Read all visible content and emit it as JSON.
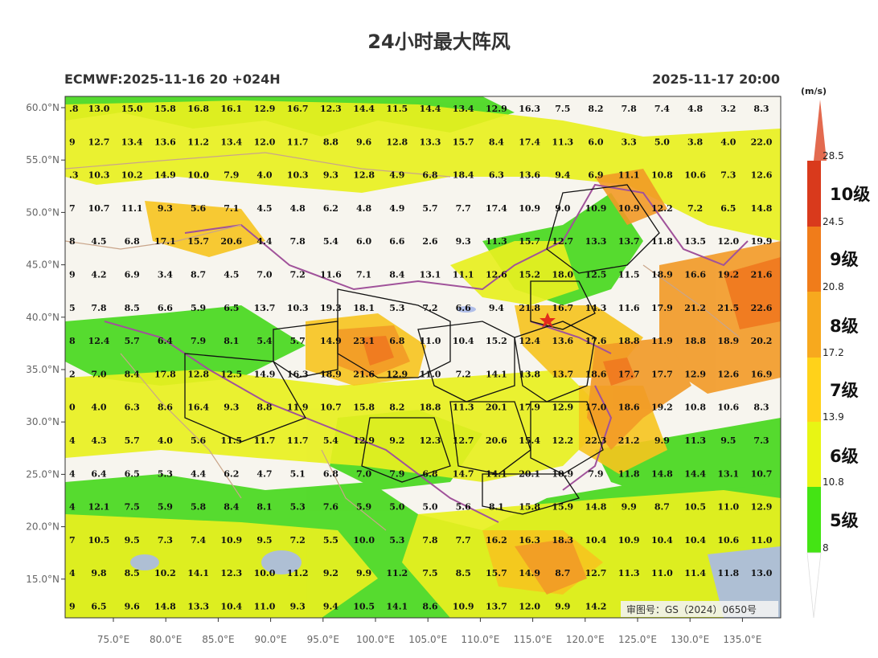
{
  "title": "24小时最大阵风",
  "subtitle_left": "ECMWF:2025-11-16 20 +024H",
  "subtitle_right": "2025-11-17 20:00",
  "approval_number": "审图号：GS（2024）0650号",
  "lat_labels": [
    "60.0°N",
    "55.0°N",
    "50.0°N",
    "45.0°N",
    "40.0°N",
    "35.0°N",
    "30.0°N",
    "25.0°N",
    "20.0°N",
    "15.0°N"
  ],
  "lon_labels": [
    "75.0°E",
    "80.0°E",
    "85.0°E",
    "90.0°E",
    "95.0°E",
    "100.0°E",
    "105.0°E",
    "110.0°E",
    "115.0°E",
    "120.0°E",
    "125.0°E",
    "130.0°E",
    "135.0°E"
  ],
  "grid_values": [
    [
      ".8",
      "13.0",
      "15.0",
      "15.8",
      "16.8",
      "16.1",
      "12.9",
      "16.7",
      "12.3",
      "14.4",
      "11.5",
      "14.4",
      "13.4",
      "12.9",
      "16.3",
      "7.5",
      "8.2",
      "7.8",
      "7.4",
      "4.8",
      "3.2",
      "8.3"
    ],
    [
      "9",
      "12.7",
      "13.4",
      "13.6",
      "11.2",
      "13.4",
      "12.0",
      "11.7",
      "8.8",
      "9.6",
      "12.8",
      "13.3",
      "15.7",
      "8.4",
      "17.4",
      "11.3",
      "6.0",
      "3.3",
      "5.0",
      "3.8",
      "4.0",
      "22.0"
    ],
    [
      ".3",
      "10.3",
      "10.2",
      "14.9",
      "10.0",
      "7.9",
      "4.0",
      "10.3",
      "9.3",
      "12.8",
      "4.9",
      "6.8",
      "18.4",
      "6.3",
      "13.6",
      "9.4",
      "6.9",
      "11.1",
      "10.8",
      "10.6",
      "7.3",
      "12.6"
    ],
    [
      "7",
      "10.7",
      "11.1",
      "9.3",
      "5.6",
      "7.1",
      "4.5",
      "4.8",
      "6.2",
      "4.8",
      "4.9",
      "5.7",
      "7.7",
      "17.4",
      "10.9",
      "9.0",
      "10.9",
      "10.9",
      "12.2",
      "7.2",
      "6.5",
      "14.8"
    ],
    [
      "8",
      "4.5",
      "6.8",
      "17.1",
      "15.7",
      "20.6",
      "4.4",
      "7.8",
      "5.4",
      "6.0",
      "6.6",
      "2.6",
      "9.3",
      "11.3",
      "15.7",
      "12.7",
      "13.3",
      "13.7",
      "11.8",
      "13.5",
      "12.0",
      "19.9"
    ],
    [
      "9",
      "4.2",
      "6.9",
      "3.4",
      "8.7",
      "4.5",
      "7.0",
      "7.2",
      "11.6",
      "7.1",
      "8.4",
      "13.1",
      "11.1",
      "12.6",
      "15.2",
      "18.0",
      "12.5",
      "11.5",
      "18.9",
      "16.6",
      "19.2",
      "21.6"
    ],
    [
      "5",
      "7.8",
      "8.5",
      "6.6",
      "5.9",
      "6.5",
      "13.7",
      "10.3",
      "19.3",
      "18.1",
      "5.3",
      "7.2",
      "6.6",
      "9.4",
      "21.8",
      "16.7",
      "14.3",
      "11.6",
      "17.9",
      "21.2",
      "21.5",
      "22.6"
    ],
    [
      "8",
      "12.4",
      "5.7",
      "6.4",
      "7.9",
      "8.1",
      "5.4",
      "5.7",
      "14.9",
      "23.1",
      "6.8",
      "11.0",
      "10.4",
      "15.2",
      "12.4",
      "13.6",
      "17.6",
      "18.8",
      "11.9",
      "18.8",
      "18.9",
      "20.2"
    ],
    [
      "2",
      "7.0",
      "8.4",
      "17.8",
      "12.8",
      "12.5",
      "14.9",
      "16.3",
      "18.9",
      "21.6",
      "12.9",
      "11.0",
      "7.2",
      "14.1",
      "13.8",
      "13.7",
      "18.6",
      "17.7",
      "17.7",
      "12.9",
      "12.6",
      "16.9"
    ],
    [
      "0",
      "4.0",
      "6.3",
      "8.6",
      "16.4",
      "9.3",
      "8.8",
      "11.9",
      "10.7",
      "15.8",
      "8.2",
      "18.8",
      "11.3",
      "20.1",
      "17.9",
      "12.9",
      "17.0",
      "18.6",
      "19.2",
      "10.8",
      "10.6",
      "8.3"
    ],
    [
      "4",
      "4.3",
      "5.7",
      "4.0",
      "5.6",
      "11.5",
      "11.7",
      "11.7",
      "5.4",
      "12.9",
      "9.2",
      "12.3",
      "12.7",
      "20.6",
      "15.4",
      "12.2",
      "22.3",
      "21.2",
      "9.9",
      "11.3",
      "9.5",
      "7.3"
    ],
    [
      "4",
      "6.4",
      "6.5",
      "5.3",
      "4.4",
      "6.2",
      "4.7",
      "5.1",
      "6.8",
      "7.0",
      "7.9",
      "6.8",
      "14.7",
      "14.1",
      "20.1",
      "10.9",
      "7.9",
      "11.8",
      "14.8",
      "14.4",
      "13.1",
      "10.7"
    ],
    [
      "4",
      "12.1",
      "7.5",
      "5.9",
      "5.8",
      "8.4",
      "8.1",
      "5.3",
      "7.6",
      "5.9",
      "5.0",
      "5.0",
      "5.6",
      "8.1",
      "15.8",
      "15.9",
      "14.8",
      "9.9",
      "8.7",
      "10.5",
      "11.0",
      "12.9"
    ],
    [
      "7",
      "10.5",
      "9.5",
      "7.3",
      "7.4",
      "10.9",
      "9.5",
      "7.2",
      "5.5",
      "10.0",
      "5.3",
      "7.8",
      "7.7",
      "16.2",
      "16.3",
      "18.3",
      "10.4",
      "10.9",
      "10.4",
      "10.4",
      "10.6",
      "11.0"
    ],
    [
      "4",
      "9.8",
      "8.5",
      "10.2",
      "14.1",
      "12.3",
      "10.0",
      "11.2",
      "9.2",
      "9.9",
      "11.2",
      "7.5",
      "8.5",
      "15.7",
      "14.9",
      "8.7",
      "12.7",
      "11.3",
      "11.0",
      "11.4",
      "11.8",
      "13.0"
    ],
    [
      "9",
      "6.5",
      "9.6",
      "14.8",
      "13.3",
      "10.4",
      "11.0",
      "9.3",
      "9.4",
      "10.5",
      "14.1",
      "8.6",
      "10.9",
      "13.7",
      "12.0",
      "9.9",
      "14.2",
      "",
      "",
      "",
      "",
      ""
    ]
  ],
  "colorbar": {
    "unit": "(m/s)",
    "ticks": [
      "28.5",
      "24.5",
      "20.8",
      "17.2",
      "13.9",
      "10.8",
      "8"
    ],
    "levels": [
      "10级",
      "9级",
      "8级",
      "7级",
      "6级",
      "5级"
    ],
    "colors": [
      "#d93a1c",
      "#f07c1a",
      "#f7a91e",
      "#ffd21a",
      "#e8f514",
      "#44e414",
      "#e36a4f"
    ]
  },
  "palette": {
    "background": "#f7f5ee",
    "level5": "#44d81a",
    "level6": "#e8f020",
    "level7": "#f6c41e",
    "level8": "#f29a26",
    "level9": "#ef7a20",
    "water": "#a9b9e8",
    "border_china": "#111111",
    "border_national": "#a0529a",
    "border_other": "#c9a58a",
    "capital_star": "#e32b1c"
  }
}
